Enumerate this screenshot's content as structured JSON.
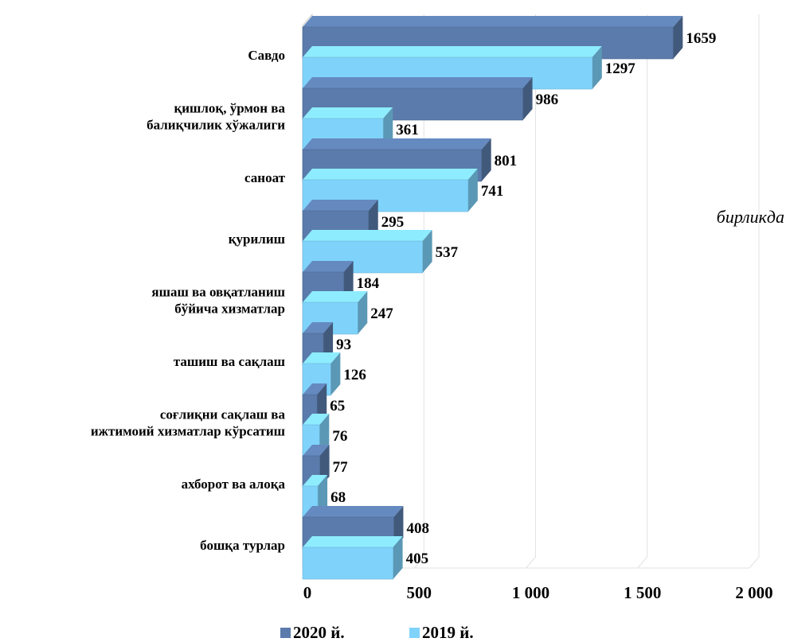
{
  "chart_data": {
    "type": "bar",
    "orientation": "horizontal",
    "unit_label": "бирликда",
    "categories": [
      [
        "Савдо"
      ],
      [
        "қишлоқ, ўрмон ва",
        "балиқчилик хўжалиги"
      ],
      [
        "саноат"
      ],
      [
        "қурилиш"
      ],
      [
        "яшаш ва овқатланиш",
        "бўйича хизматлар"
      ],
      [
        "ташиш ва сақлаш"
      ],
      [
        "соғлиқни сақлаш ва",
        "ижтимоий хизматлар кўрсатиш"
      ],
      [
        "ахборот ва алоқа"
      ],
      [
        "бошқа турлар"
      ]
    ],
    "series": [
      {
        "name": "2020 й.",
        "values": [
          1659,
          986,
          801,
          295,
          184,
          93,
          65,
          77,
          408
        ],
        "color": "#5a7bab"
      },
      {
        "name": "2019 й.",
        "values": [
          1297,
          361,
          741,
          537,
          247,
          126,
          76,
          68,
          405
        ],
        "color": "#7fd3fb"
      }
    ],
    "xlim": [
      0,
      2000
    ],
    "xticks": [
      {
        "value": 0,
        "label": "0"
      },
      {
        "value": 500,
        "label": "500"
      },
      {
        "value": 1000,
        "label": "1 000"
      },
      {
        "value": 1500,
        "label": "1 500"
      },
      {
        "value": 2000,
        "label": "2 000"
      }
    ],
    "legend_position": "bottom",
    "grid": true
  }
}
